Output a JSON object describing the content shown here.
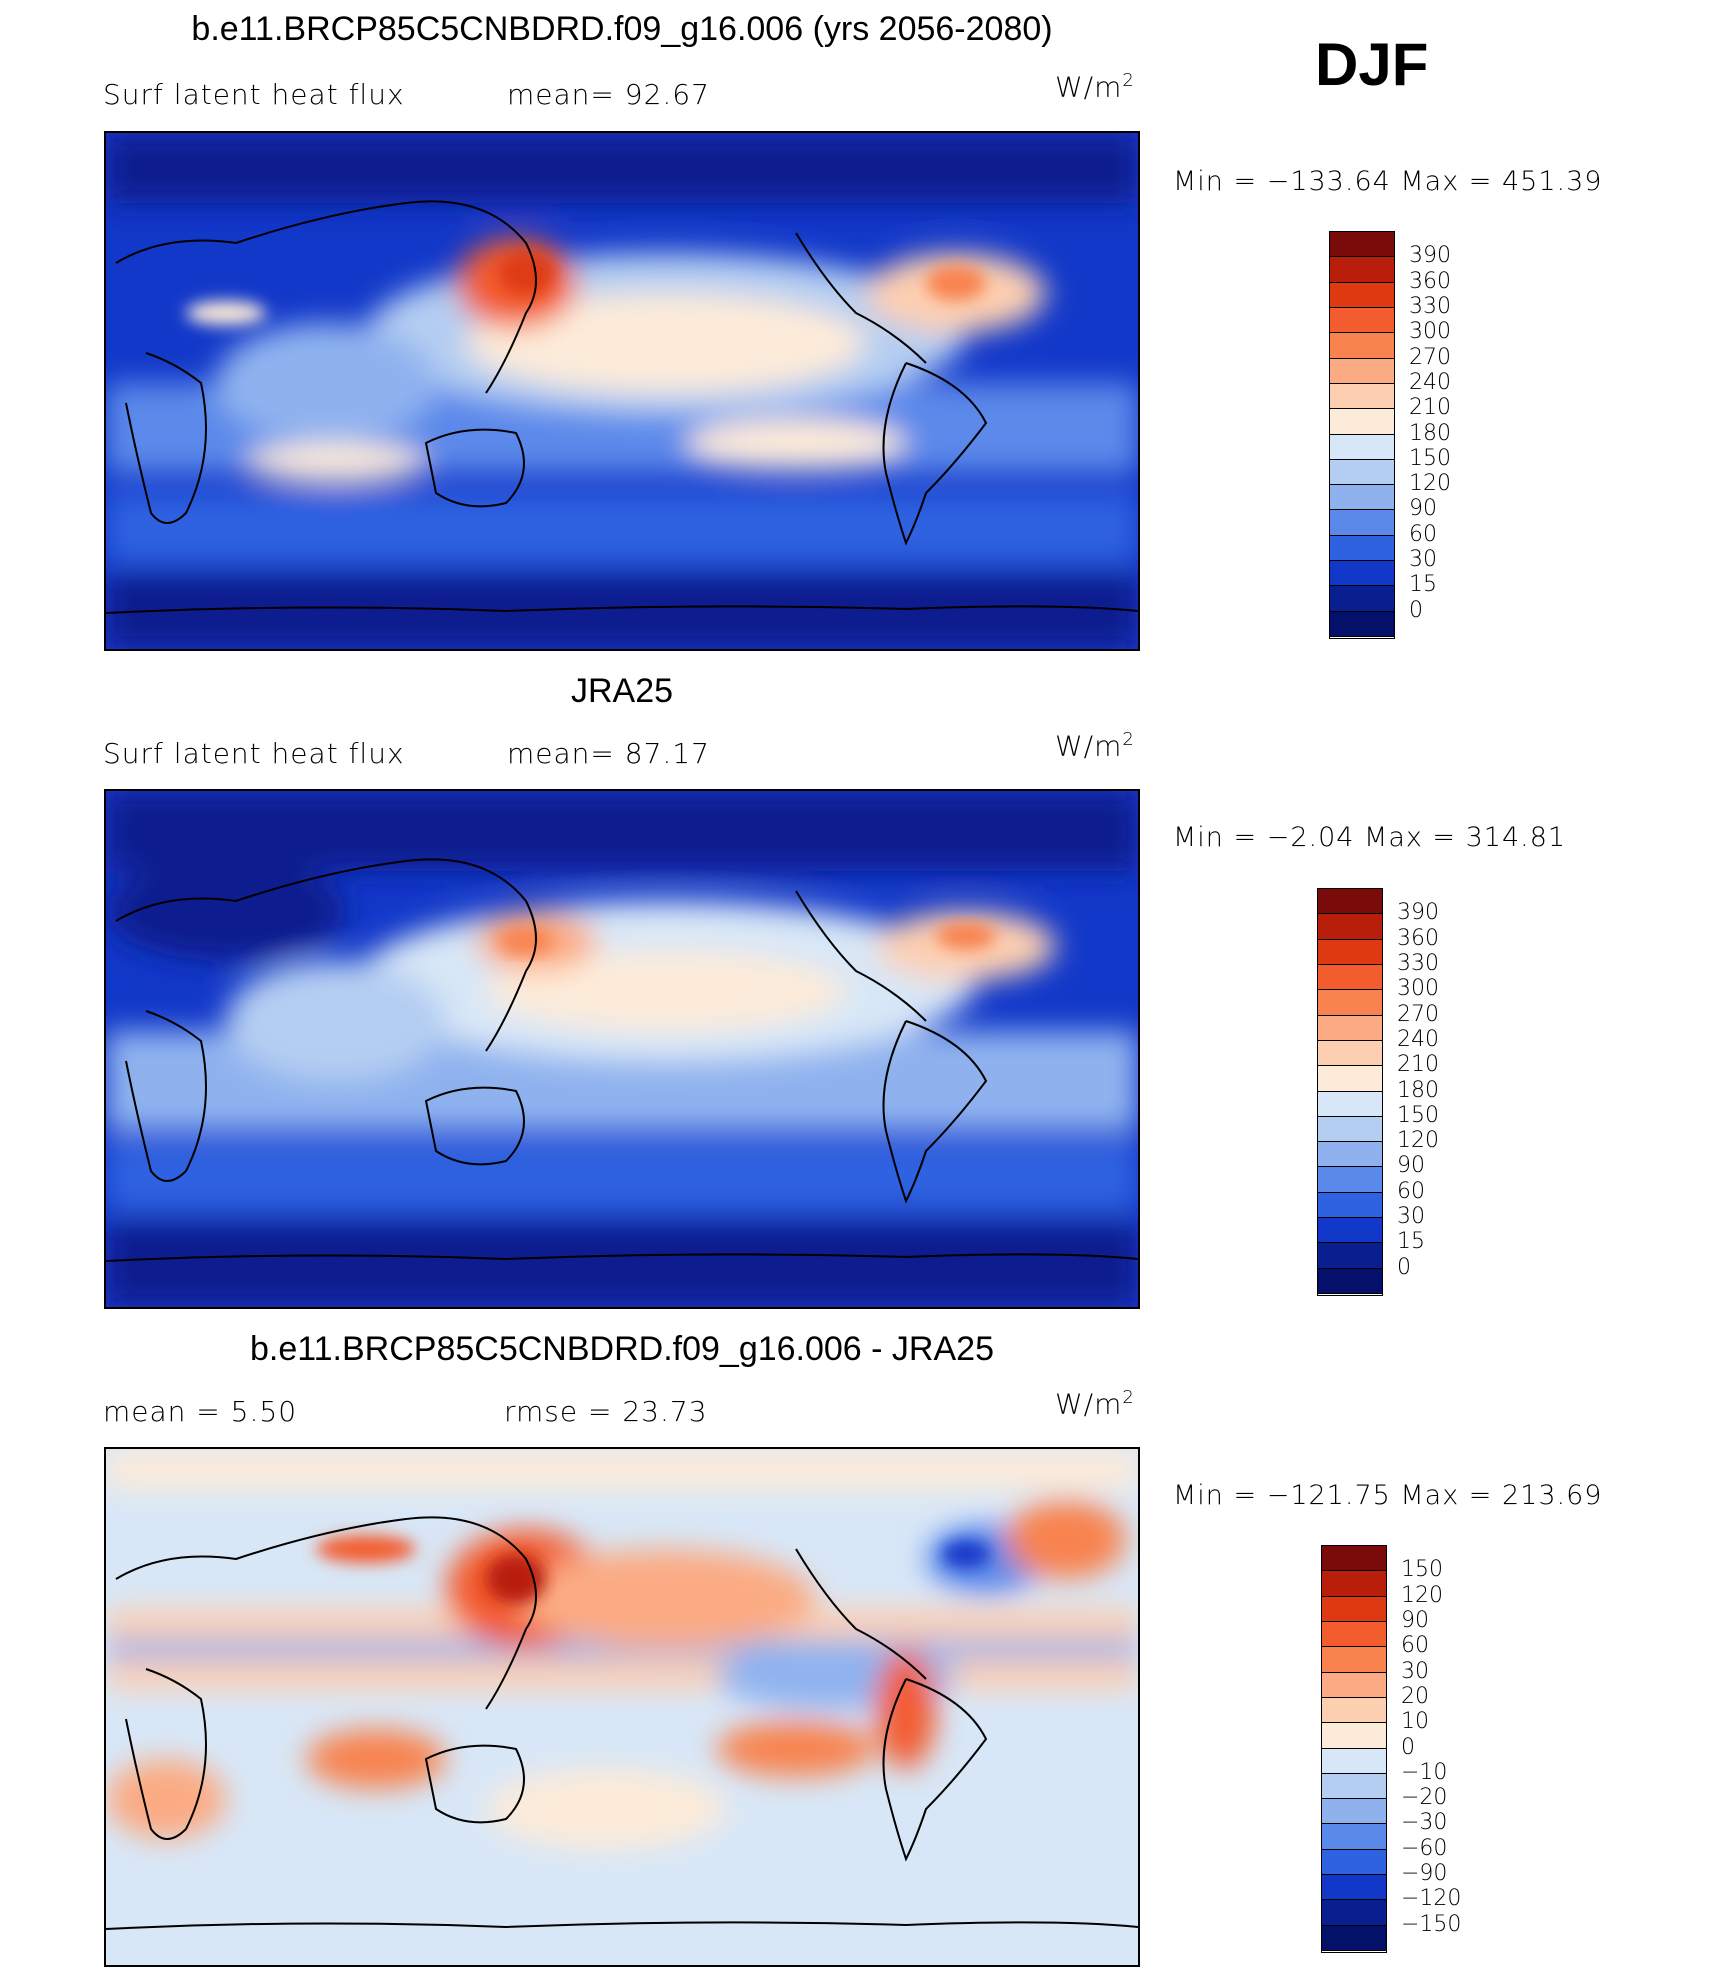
{
  "season": "DJF",
  "panels": [
    {
      "title": "b.e11.BRCP85C5CNBDRD.f09_g16.006 (yrs 2056-2080)",
      "left_label": "Surf latent heat flux",
      "center_label": "mean=   92.67",
      "units": "W/m",
      "units_exp": "2",
      "minmax": "Min  =  −133.64  Max  =  451.39",
      "colorbar": {
        "labels": [
          "390",
          "360",
          "330",
          "300",
          "270",
          "240",
          "210",
          "180",
          "150",
          "120",
          "90",
          "60",
          "30",
          "15",
          "0"
        ],
        "colors": [
          "#7a0b0b",
          "#b81e0a",
          "#de3a12",
          "#f35c2e",
          "#f8834f",
          "#fbab83",
          "#fdcfb1",
          "#fdebd9",
          "#d8e7f7",
          "#b4cef2",
          "#8fb2ef",
          "#5b89ea",
          "#2f62e0",
          "#1238c9",
          "#0a1f8f",
          "#05106a"
        ]
      }
    },
    {
      "title": "JRA25",
      "left_label": "Surf latent heat flux",
      "center_label": "mean=   87.17",
      "units": "W/m",
      "units_exp": "2",
      "minmax": "Min  =    −2.04  Max  =  314.81",
      "colorbar": {
        "labels": [
          "390",
          "360",
          "330",
          "300",
          "270",
          "240",
          "210",
          "180",
          "150",
          "120",
          "90",
          "60",
          "30",
          "15",
          "0"
        ],
        "colors": [
          "#7a0b0b",
          "#b81e0a",
          "#de3a12",
          "#f35c2e",
          "#f8834f",
          "#fbab83",
          "#fdcfb1",
          "#fdebd9",
          "#d8e7f7",
          "#b4cef2",
          "#8fb2ef",
          "#5b89ea",
          "#2f62e0",
          "#1238c9",
          "#0a1f8f",
          "#05106a"
        ]
      }
    },
    {
      "title": "b.e11.BRCP85C5CNBDRD.f09_g16.006 - JRA25",
      "left_label": "mean  =      5.50",
      "center_label": "rmse  =    23.73",
      "units": "W/m",
      "units_exp": "2",
      "minmax": "Min  =  −121.75  Max  =  213.69",
      "colorbar": {
        "labels": [
          "150",
          "120",
          "90",
          "60",
          "30",
          "20",
          "10",
          "0",
          "−10",
          "−20",
          "−30",
          "−60",
          "−90",
          "−120",
          "−150"
        ],
        "colors": [
          "#7a0b0b",
          "#b81e0a",
          "#de3a12",
          "#f35c2e",
          "#f8834f",
          "#fbab83",
          "#fdcfb1",
          "#fdebd9",
          "#d8e7f7",
          "#b4cef2",
          "#8fb2ef",
          "#5b89ea",
          "#2f62e0",
          "#1238c9",
          "#0a1f8f",
          "#05106a"
        ]
      }
    }
  ]
}
